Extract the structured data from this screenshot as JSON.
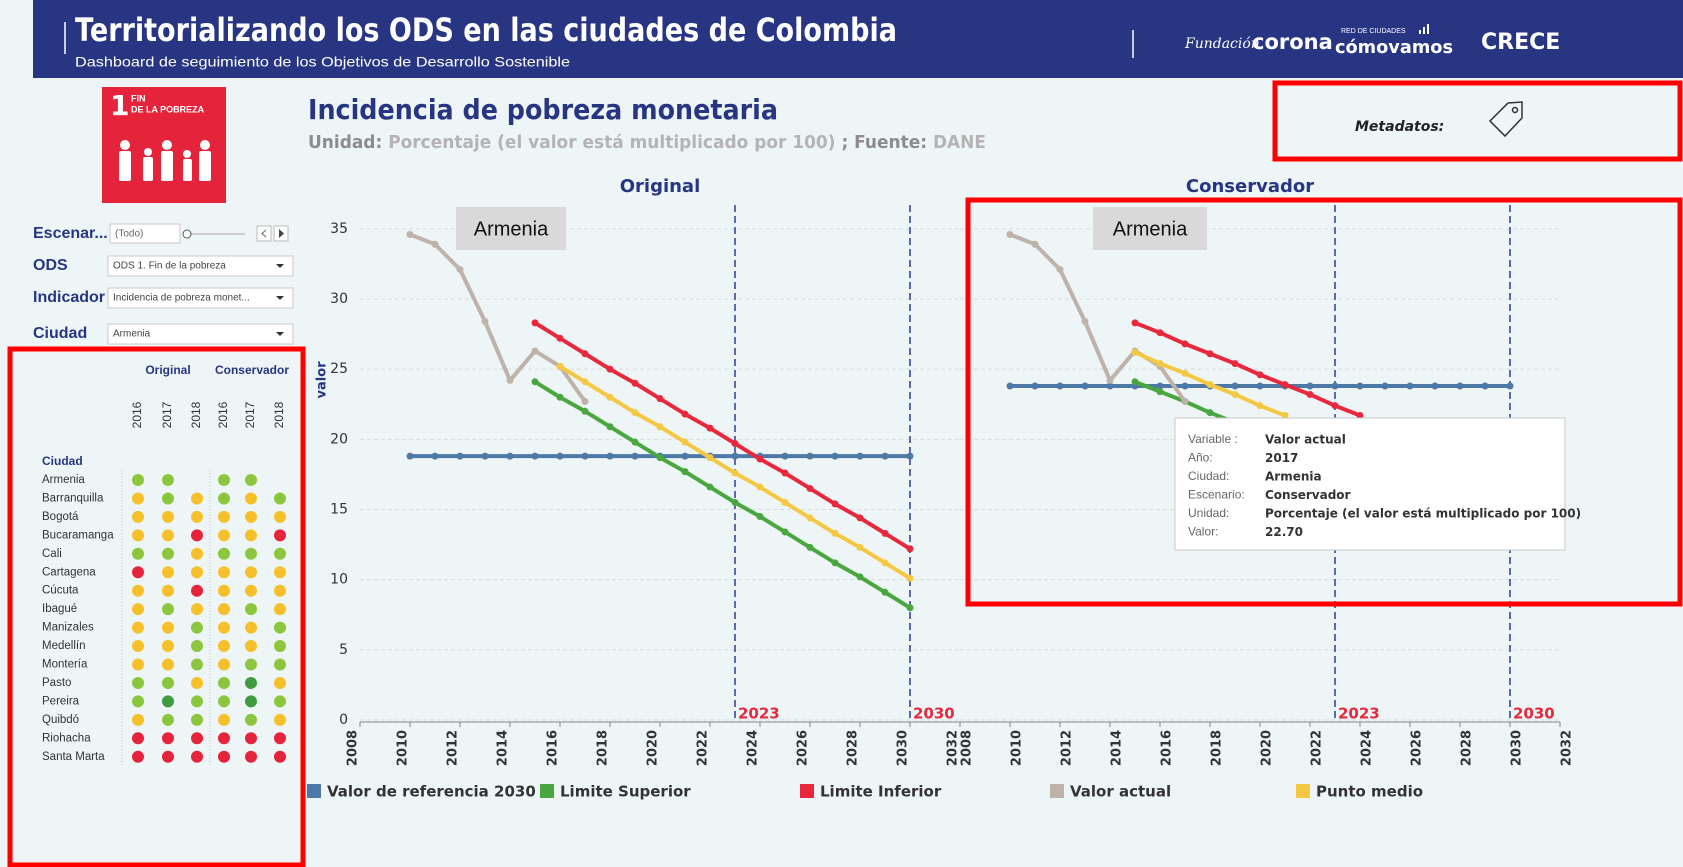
{
  "header": {
    "title": "Territorializando los ODS en las ciudades de Colombia",
    "subtitle": "Dashboard de seguimiento de los Objetivos de Desarrollo Sostenible",
    "logos": [
      "Fundación",
      "corona",
      "RED DE CIUDADES",
      "cómovamos",
      "CRECE"
    ]
  },
  "sdg": {
    "number": "1",
    "line1": "FIN",
    "line2": "DE LA POBREZA"
  },
  "filters": [
    {
      "label": "Escenar...",
      "value": "(Todo)"
    },
    {
      "label": "ODS",
      "value": "ODS 1. Fin de la pobreza"
    },
    {
      "label": "Indicador",
      "value": "Incidencia de pobreza monet..."
    },
    {
      "label": "Ciudad",
      "value": "Armenia"
    }
  ],
  "matrix": {
    "groups": [
      "Original",
      "Conservador"
    ],
    "years": [
      "2016",
      "2017",
      "2018"
    ],
    "row_header": "Ciudad",
    "cities": [
      "Armenia",
      "Barranquilla",
      "Bogotá",
      "Bucaramanga",
      "Cali",
      "Cartagena",
      "Cúcuta",
      "Ibagué",
      "Manizales",
      "Medellín",
      "Montería",
      "Pasto",
      "Pereira",
      "Quibdó",
      "Riohacha",
      "Santa Marta"
    ],
    "colors": [
      [
        "#8cc63f",
        "#8cc63f",
        null,
        "#8cc63f",
        "#8cc63f",
        null
      ],
      [
        "#f5c02a",
        "#8cc63f",
        "#f5c02a",
        "#8cc63f",
        "#f5c02a",
        "#8cc63f"
      ],
      [
        "#f5c02a",
        "#f5c02a",
        "#f5c02a",
        "#f5c02a",
        "#f5c02a",
        "#f5c02a"
      ],
      [
        "#f5c02a",
        "#f5c02a",
        "#e5243b",
        "#f5c02a",
        "#f5c02a",
        "#e5243b"
      ],
      [
        "#8cc63f",
        "#8cc63f",
        "#f5c02a",
        "#8cc63f",
        "#8cc63f",
        "#8cc63f"
      ],
      [
        "#e5243b",
        "#f5c02a",
        "#f5c02a",
        "#f5c02a",
        "#f5c02a",
        "#f5c02a"
      ],
      [
        "#f5c02a",
        "#f5c02a",
        "#e5243b",
        "#f5c02a",
        "#f5c02a",
        "#f5c02a"
      ],
      [
        "#f5c02a",
        "#8cc63f",
        "#f5c02a",
        "#f5c02a",
        "#8cc63f",
        "#f5c02a"
      ],
      [
        "#f5c02a",
        "#f5c02a",
        "#8cc63f",
        "#f5c02a",
        "#f5c02a",
        "#8cc63f"
      ],
      [
        "#f5c02a",
        "#f5c02a",
        "#8cc63f",
        "#f5c02a",
        "#f5c02a",
        "#8cc63f"
      ],
      [
        "#f5c02a",
        "#f5c02a",
        "#8cc63f",
        "#f5c02a",
        "#8cc63f",
        "#8cc63f"
      ],
      [
        "#8cc63f",
        "#8cc63f",
        "#f5c02a",
        "#8cc63f",
        "#3f9b3f",
        "#f5c02a"
      ],
      [
        "#8cc63f",
        "#3f9b3f",
        "#8cc63f",
        "#8cc63f",
        "#3f9b3f",
        "#8cc63f"
      ],
      [
        "#f5c02a",
        "#8cc63f",
        "#8cc63f",
        "#f5c02a",
        "#8cc63f",
        "#f5c02a"
      ],
      [
        "#e5243b",
        "#e5243b",
        "#e5243b",
        "#e5243b",
        "#e5243b",
        "#e5243b"
      ],
      [
        "#e5243b",
        "#e5243b",
        "#e5243b",
        "#e5243b",
        "#e5243b",
        "#e5243b"
      ]
    ]
  },
  "indicator": {
    "title": "Incidencia de pobreza monetaria",
    "unit_label": "Unidad:",
    "unit": "Porcentaje (el valor está multiplicado por 100)",
    "source_label": "; Fuente:",
    "source": "DANE"
  },
  "metadata_label": "Metadatos:",
  "city_label": "Armenia",
  "tooltip": {
    "rows": [
      [
        "Variable :",
        "Valor actual"
      ],
      [
        "Año:",
        "2017"
      ],
      [
        "Ciudad:",
        "Armenia"
      ],
      [
        "Escenario:",
        "Conservador"
      ],
      [
        "Unidad:",
        "Porcentaje (el valor está multiplicado por 100)"
      ],
      [
        "Valor:",
        "22.70"
      ]
    ]
  },
  "chart_data": [
    {
      "type": "line",
      "title": "Original",
      "y_label": "valor",
      "x": [
        2010,
        2011,
        2012,
        2013,
        2014,
        2015,
        2016,
        2017,
        2018,
        2019,
        2020,
        2021,
        2022,
        2023,
        2024,
        2025,
        2026,
        2027,
        2028,
        2029,
        2030
      ],
      "xlim": [
        2008,
        2032
      ],
      "xticks": [
        2008,
        2010,
        2012,
        2014,
        2016,
        2018,
        2020,
        2022,
        2024,
        2026,
        2028,
        2030,
        2032
      ],
      "ylim": [
        0,
        36.7
      ],
      "yticks": [
        0,
        5,
        10,
        15,
        20,
        25,
        30,
        35
      ],
      "grid": true,
      "vlines": [
        2023,
        2030
      ],
      "series": [
        {
          "name": "Valor de referencia 2030",
          "color": "#4e79a7",
          "values": [
            18.8,
            18.8,
            18.8,
            18.8,
            18.8,
            18.8,
            18.8,
            18.8,
            18.8,
            18.8,
            18.8,
            18.8,
            18.8,
            18.8,
            18.8,
            18.8,
            18.8,
            18.8,
            18.8,
            18.8,
            18.8
          ]
        },
        {
          "name": "Limite Superior",
          "color": "#4aa63f",
          "values": [
            null,
            null,
            null,
            null,
            null,
            24.1,
            23.0,
            22.0,
            20.9,
            19.8,
            18.7,
            17.7,
            16.6,
            15.5,
            14.5,
            13.4,
            12.3,
            11.2,
            10.2,
            9.1,
            8.0
          ]
        },
        {
          "name": "Limite Inferior",
          "color": "#e8283d",
          "values": [
            null,
            null,
            null,
            null,
            null,
            28.3,
            27.2,
            26.1,
            25.0,
            24.0,
            22.9,
            21.8,
            20.8,
            19.7,
            18.6,
            17.6,
            16.5,
            15.4,
            14.4,
            13.3,
            12.2
          ]
        },
        {
          "name": "Valor actual",
          "color": "#bfb2a8",
          "values": [
            34.6,
            33.9,
            32.1,
            28.4,
            24.2,
            26.3,
            25.2,
            22.7,
            null,
            null,
            null,
            null,
            null,
            null,
            null,
            null,
            null,
            null,
            null,
            null,
            null
          ]
        },
        {
          "name": "Punto medio",
          "color": "#f4c842",
          "values": [
            null,
            null,
            null,
            null,
            null,
            null,
            25.2,
            24.1,
            23.0,
            21.9,
            20.9,
            19.8,
            18.7,
            17.6,
            16.6,
            15.5,
            14.4,
            13.3,
            12.3,
            11.2,
            10.1
          ]
        }
      ]
    },
    {
      "type": "line",
      "title": "Conservador",
      "x": [
        2010,
        2011,
        2012,
        2013,
        2014,
        2015,
        2016,
        2017,
        2018,
        2019,
        2020,
        2021,
        2022,
        2023,
        2024,
        2025,
        2026,
        2027,
        2028,
        2029,
        2030
      ],
      "xlim": [
        2008,
        2032
      ],
      "xticks": [
        2008,
        2010,
        2012,
        2014,
        2016,
        2018,
        2020,
        2022,
        2024,
        2026,
        2028,
        2030,
        2032
      ],
      "ylim": [
        0,
        36.7
      ],
      "yticks": [
        0,
        5,
        10,
        15,
        20,
        25,
        30,
        35
      ],
      "grid": true,
      "vlines": [
        2023,
        2030
      ],
      "series": [
        {
          "values": [
            23.8,
            23.8,
            23.8,
            23.8,
            23.8,
            23.8,
            23.8,
            23.8,
            23.8,
            23.8,
            23.8,
            23.8,
            23.8,
            23.8,
            23.8,
            23.8,
            23.8,
            23.8,
            23.8,
            23.8,
            23.8
          ]
        },
        {
          "values": [
            null,
            null,
            null,
            null,
            null,
            24.1,
            23.4,
            22.7,
            21.9,
            21.2,
            null,
            null,
            null,
            null,
            null,
            null,
            null,
            null,
            null,
            null,
            null
          ]
        },
        {
          "values": [
            null,
            null,
            null,
            null,
            null,
            28.3,
            27.6,
            26.8,
            26.1,
            25.4,
            24.6,
            23.9,
            23.2,
            22.4,
            21.7,
            null,
            null,
            null,
            null,
            null,
            null
          ]
        },
        {
          "values": [
            34.6,
            33.9,
            32.1,
            28.4,
            24.2,
            26.3,
            25.2,
            22.7,
            null,
            null,
            null,
            null,
            null,
            null,
            null,
            null,
            null,
            null,
            null,
            null,
            null
          ]
        },
        {
          "values": [
            null,
            null,
            null,
            null,
            null,
            26.2,
            25.4,
            24.7,
            23.9,
            23.2,
            22.4,
            21.7,
            null,
            null,
            null,
            null,
            null,
            null,
            null,
            null,
            null
          ]
        }
      ]
    }
  ]
}
